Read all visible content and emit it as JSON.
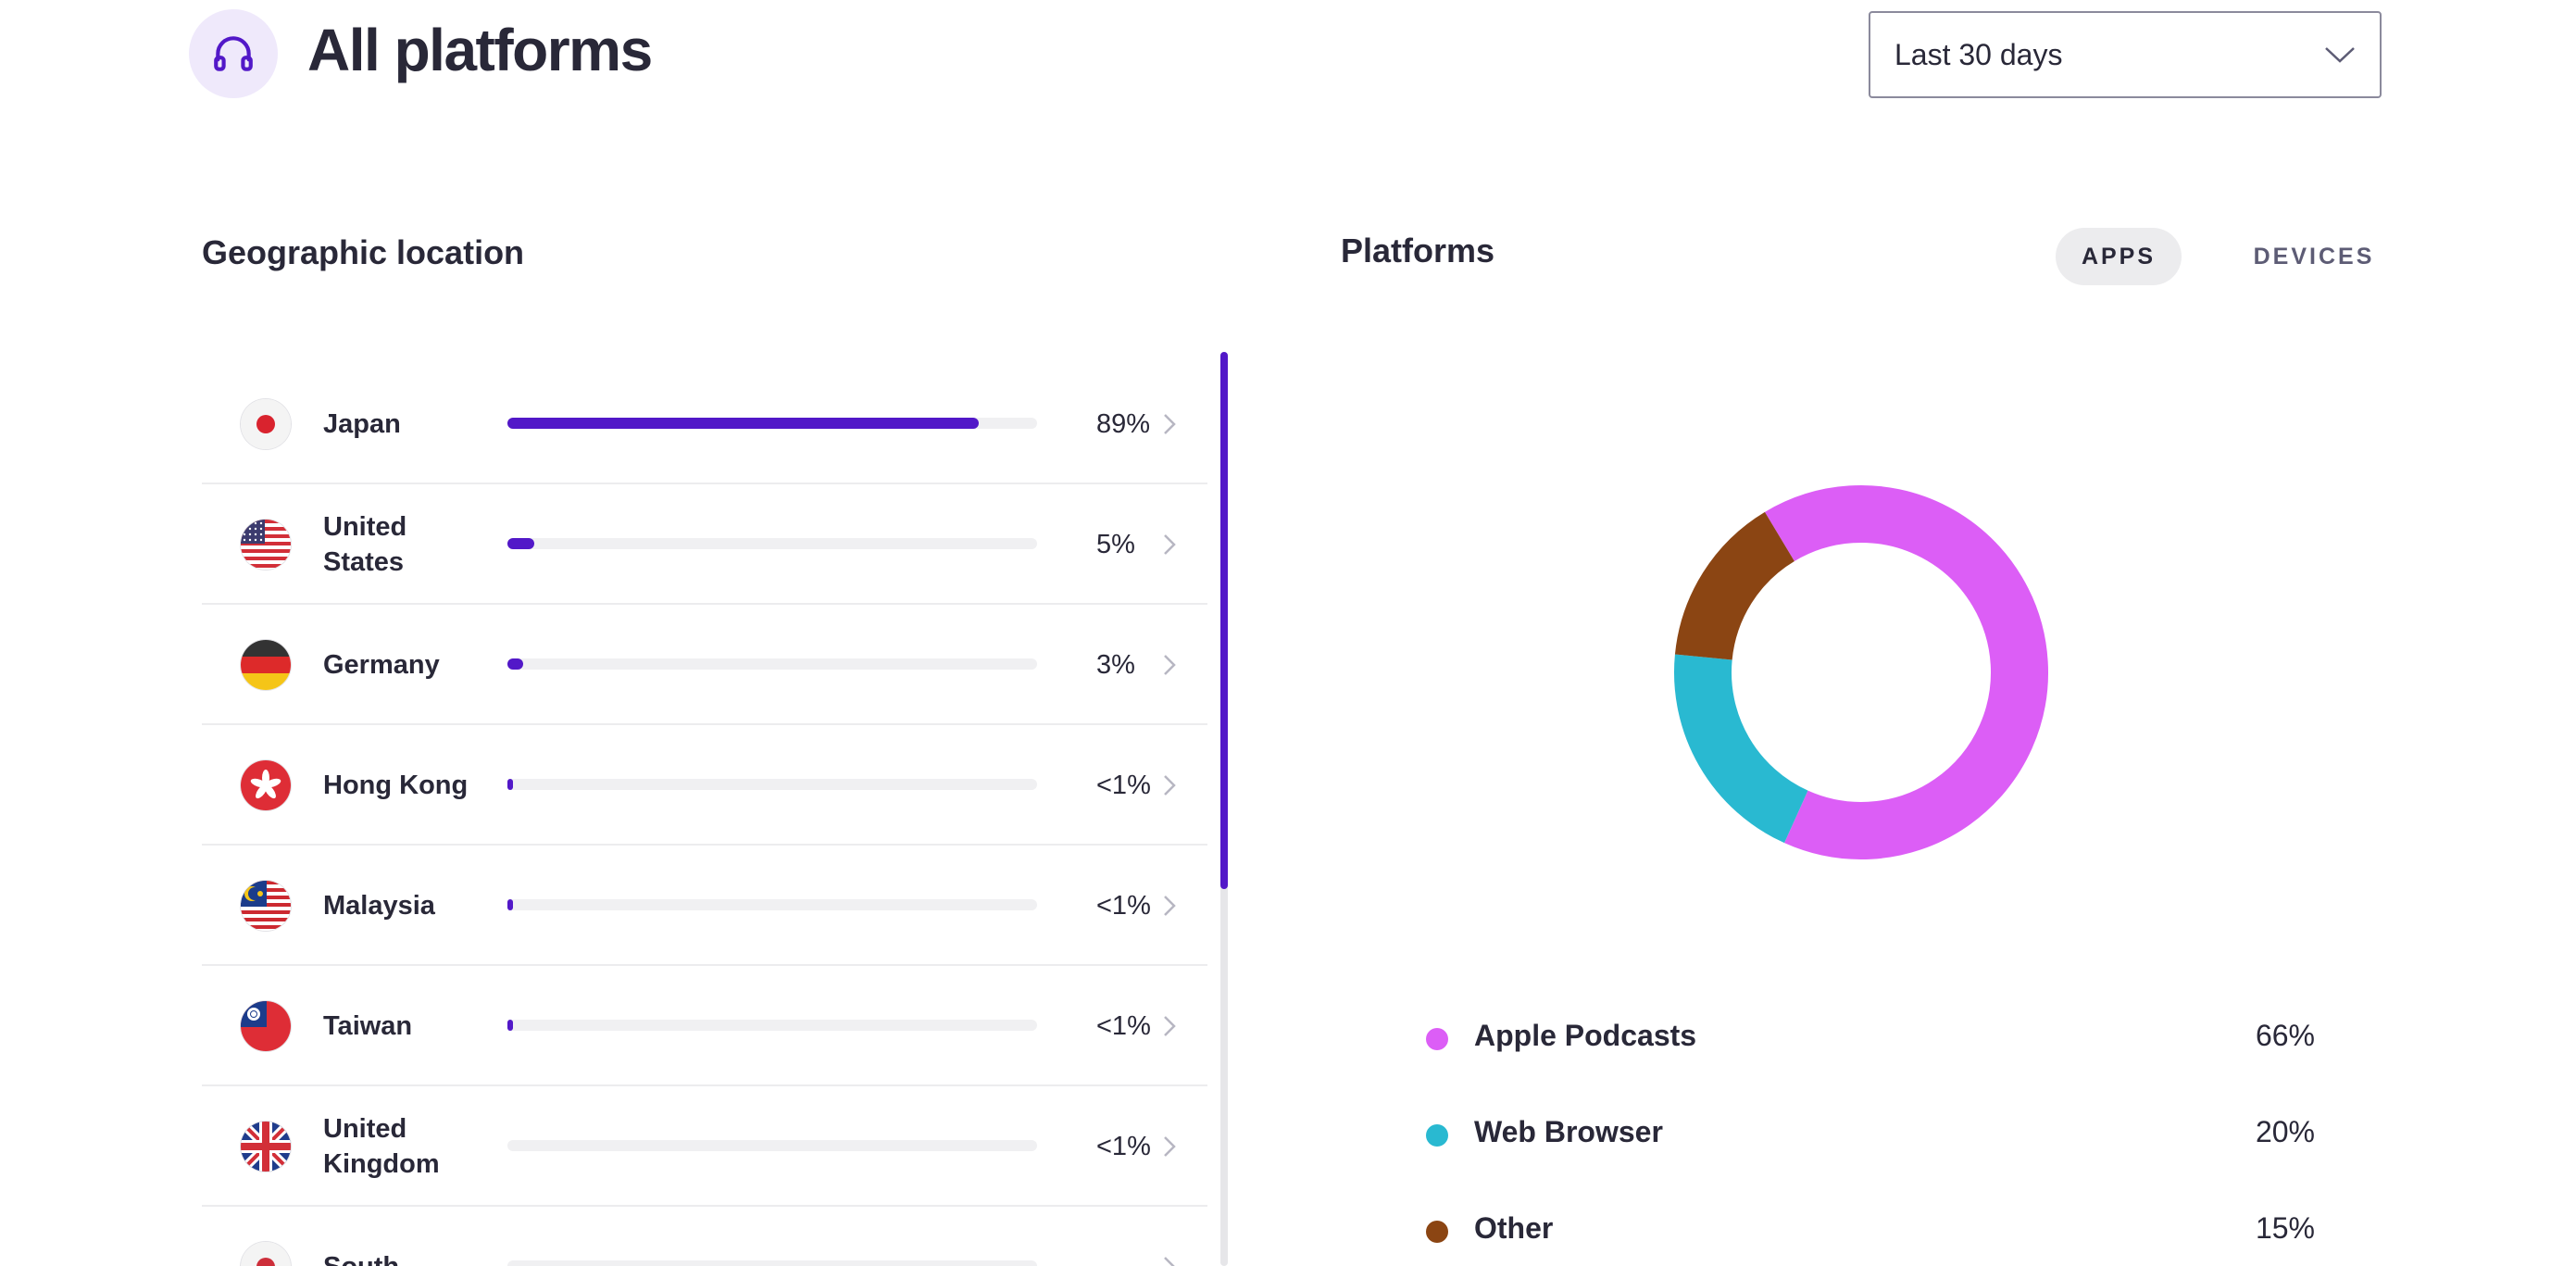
{
  "header": {
    "title": "All platforms",
    "icon": "headphones-icon",
    "date_range": "Last 30 days"
  },
  "geo": {
    "title": "Geographic location",
    "countries": [
      {
        "name": "Japan",
        "percent_label": "89%",
        "share": 89,
        "flag": "japan-flag-icon"
      },
      {
        "name": "United States",
        "percent_label": "5%",
        "share": 5,
        "flag": "us-flag-icon"
      },
      {
        "name": "Germany",
        "percent_label": "3%",
        "share": 3,
        "flag": "germany-flag-icon"
      },
      {
        "name": "Hong Kong",
        "percent_label": "<1%",
        "share": 0.5,
        "flag": "hong-kong-flag-icon"
      },
      {
        "name": "Malaysia",
        "percent_label": "<1%",
        "share": 0.5,
        "flag": "malaysia-flag-icon"
      },
      {
        "name": "Taiwan",
        "percent_label": "<1%",
        "share": 0.5,
        "flag": "taiwan-flag-icon"
      },
      {
        "name": "United Kingdom",
        "percent_label": "<1%",
        "share": 0,
        "flag": "uk-flag-icon"
      },
      {
        "name": "South",
        "percent_label": "",
        "share": 0,
        "flag": "south-korea-flag-icon"
      }
    ]
  },
  "platforms": {
    "title": "Platforms",
    "tabs": [
      {
        "label": "APPS",
        "active": true
      },
      {
        "label": "DEVICES",
        "active": false
      }
    ],
    "items": [
      {
        "name": "Apple Podcasts",
        "percent_label": "66%",
        "color": "#dc5ef6"
      },
      {
        "name": "Web Browser",
        "percent_label": "20%",
        "color": "#29b9d1"
      },
      {
        "name": "Other",
        "percent_label": "15%",
        "color": "#8b4513"
      }
    ]
  },
  "chart_data": {
    "type": "pie",
    "categories": [
      "Apple Podcasts",
      "Web Browser",
      "Other"
    ],
    "values": [
      66,
      20,
      15
    ],
    "colors": [
      "#dc5ef6",
      "#29b9d1",
      "#8b4513"
    ],
    "title": ""
  }
}
